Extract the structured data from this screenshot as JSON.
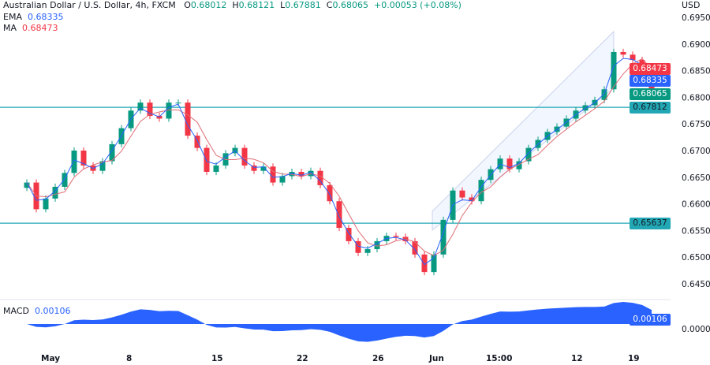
{
  "header": {
    "title": "Australian Dollar / U.S. Dollar, 4h, FXCM",
    "o_label": "O",
    "o": "0.68012",
    "h_label": "H",
    "h": "0.68121",
    "l_label": "L",
    "l": "0.67881",
    "c_label": "C",
    "c": "0.68065",
    "change": "+0.00053 (+0.08%)",
    "ema_label": "EMA",
    "ema": "0.68335",
    "ma_label": "MA",
    "ma": "0.68473"
  },
  "macd": {
    "label": "MACD",
    "value": "0.00106",
    "zero_label": "0.00000"
  },
  "axis": {
    "currency": "USD"
  },
  "tags": {
    "ma": "0.68473",
    "ema": "0.68335",
    "close": "0.68065",
    "level1": "0.67812",
    "level2": "0.65637"
  },
  "colors": {
    "up": "#089981",
    "down": "#f23645",
    "ema": "#2962ff",
    "ma": "#e06c75",
    "level": "#22a8b5",
    "macd": "#2962ff"
  },
  "chart_data": {
    "type": "candlestick",
    "title": "Australian Dollar / U.S. Dollar, 4h, FXCM",
    "ylabel": "USD",
    "ylim": [
      0.643,
      0.697
    ],
    "y_ticks": [
      "0.69500",
      "0.69000",
      "0.68500",
      "0.68000",
      "0.67500",
      "0.67000",
      "0.66500",
      "0.66000",
      "0.65500",
      "0.65000",
      "0.64500"
    ],
    "x_ticks": [
      {
        "label": "May",
        "bar": 2
      },
      {
        "label": "8",
        "bar": 11
      },
      {
        "label": "15",
        "bar": 20
      },
      {
        "label": "22",
        "bar": 29
      },
      {
        "label": "26",
        "bar": 37
      },
      {
        "label": "Jun",
        "bar": 43
      },
      {
        "label": "15:00",
        "bar": 49
      },
      {
        "label": "12",
        "bar": 58
      },
      {
        "label": "19",
        "bar": 64
      }
    ],
    "horizontal_levels": [
      0.67812,
      0.65637
    ],
    "first_open": 0.663,
    "closes": [
      0.664,
      0.659,
      0.661,
      0.6632,
      0.6658,
      0.67,
      0.6672,
      0.6662,
      0.668,
      0.6712,
      0.6742,
      0.6775,
      0.679,
      0.6765,
      0.676,
      0.679,
      0.679,
      0.6728,
      0.6705,
      0.666,
      0.6672,
      0.6695,
      0.6705,
      0.6672,
      0.6662,
      0.667,
      0.664,
      0.6652,
      0.666,
      0.6652,
      0.6662,
      0.6635,
      0.6605,
      0.6555,
      0.653,
      0.6508,
      0.6515,
      0.653,
      0.654,
      0.6538,
      0.653,
      0.6505,
      0.6472,
      0.6505,
      0.657,
      0.6625,
      0.6612,
      0.6605,
      0.6645,
      0.6665,
      0.6685,
      0.6665,
      0.668,
      0.6705,
      0.672,
      0.6735,
      0.6745,
      0.676,
      0.6775,
      0.6785,
      0.6795,
      0.6815,
      0.6885,
      0.688,
      0.687,
      0.6855,
      0.68065
    ]
  }
}
